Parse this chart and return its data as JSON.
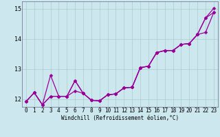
{
  "bg_color": "#cce8ee",
  "grid_color": "#aacccc",
  "line_color": "#990099",
  "xlim": [
    -0.5,
    23.5
  ],
  "ylim": [
    11.75,
    15.25
  ],
  "yticks": [
    12,
    13,
    14,
    15
  ],
  "xticks": [
    0,
    1,
    2,
    3,
    4,
    5,
    6,
    7,
    8,
    9,
    10,
    11,
    12,
    13,
    14,
    15,
    16,
    17,
    18,
    19,
    20,
    21,
    22,
    23
  ],
  "xlabel": "Windchill (Refroidissement éolien,°C)",
  "series": [
    [
      11.93,
      12.22,
      11.82,
      12.8,
      12.1,
      12.1,
      12.62,
      12.2,
      11.97,
      11.95,
      12.15,
      12.18,
      12.38,
      12.4,
      13.05,
      13.1,
      13.55,
      13.62,
      13.62,
      13.82,
      13.85,
      14.15,
      14.7,
      15.02
    ],
    [
      11.93,
      12.22,
      11.82,
      12.1,
      12.1,
      12.1,
      12.62,
      12.2,
      11.97,
      11.95,
      12.15,
      12.18,
      12.38,
      12.4,
      13.05,
      13.1,
      13.55,
      13.62,
      13.62,
      13.82,
      13.85,
      14.15,
      14.7,
      14.88
    ],
    [
      11.93,
      12.22,
      11.82,
      12.1,
      12.1,
      12.1,
      12.28,
      12.2,
      11.97,
      11.95,
      12.15,
      12.18,
      12.38,
      12.4,
      13.05,
      13.1,
      13.55,
      13.62,
      13.62,
      13.82,
      13.85,
      14.15,
      14.22,
      14.88
    ]
  ],
  "marker_size": 2.5,
  "line_width": 0.9,
  "tick_fontsize": 5.5,
  "xlabel_fontsize": 5.5
}
